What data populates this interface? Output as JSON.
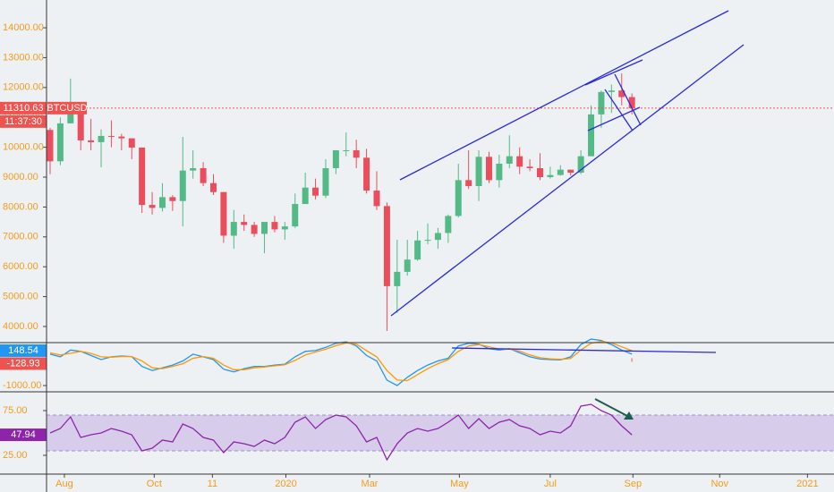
{
  "chart_data": [
    {
      "type": "candlestick",
      "symbol": "BTCUSD",
      "countdown": "11:37:30",
      "up_color": "#53b987",
      "down_color": "#eb4d5c",
      "label_color": "#ef5350",
      "open": [
        10580,
        9530,
        10800,
        11380,
        10230,
        10170,
        10380,
        10360,
        10300,
        9990,
        8070,
        7970,
        8330,
        8200,
        9220,
        9300,
        8800,
        8500,
        7040,
        7500,
        7400,
        7100,
        7500,
        7250,
        7350,
        8100,
        8650,
        8380,
        9300,
        9900,
        9900,
        9650,
        8550,
        8030,
        5350,
        5830,
        6240,
        6880,
        6900,
        7130,
        7700,
        8900,
        8700,
        9680,
        8900,
        9450,
        9700,
        9350,
        9300,
        9000,
        9070,
        9250,
        9150,
        9700,
        11100,
        11850,
        11900,
        11680
      ],
      "high": [
        10650,
        11000,
        12300,
        11450,
        10950,
        10600,
        10900,
        10450,
        10300,
        9990,
        8500,
        8800,
        8400,
        10350,
        9900,
        9500,
        9100,
        8500,
        7900,
        7750,
        7500,
        7500,
        7700,
        7500,
        8450,
        9150,
        8950,
        9600,
        9900,
        10500,
        10250,
        9950,
        9200,
        8150,
        6900,
        6900,
        7200,
        7450,
        7300,
        7750,
        9450,
        9900,
        9900,
        9850,
        9750,
        10400,
        10000,
        9600,
        9800,
        9350,
        9400,
        9250,
        9900,
        11400,
        11900,
        12100,
        12470,
        11800
      ],
      "low": [
        9100,
        9400,
        10800,
        9900,
        9900,
        9330,
        10000,
        9900,
        9600,
        7800,
        7750,
        7850,
        7870,
        7350,
        8950,
        8700,
        8400,
        6800,
        6600,
        7200,
        7000,
        6450,
        7150,
        6900,
        7300,
        8100,
        8250,
        8300,
        9100,
        9700,
        9300,
        8450,
        7900,
        3850,
        4450,
        5700,
        6200,
        6750,
        6600,
        6800,
        7650,
        8600,
        8200,
        8800,
        8650,
        9300,
        9100,
        9200,
        8900,
        8950,
        9050,
        9050,
        9100,
        9700,
        10650,
        11150,
        11400,
        11100
      ],
      "close": [
        9530,
        10800,
        11380,
        10230,
        10170,
        10380,
        10360,
        10300,
        9990,
        8070,
        7970,
        8330,
        8200,
        9220,
        9300,
        8800,
        8500,
        7040,
        7500,
        7400,
        7100,
        7500,
        7250,
        7350,
        8100,
        8650,
        8380,
        9300,
        9900,
        9900,
        9650,
        8550,
        8030,
        5350,
        5830,
        6240,
        6880,
        6900,
        7130,
        7700,
        8900,
        8700,
        9680,
        8900,
        9450,
        9700,
        9350,
        9300,
        9000,
        9070,
        9250,
        9150,
        9700,
        11100,
        11850,
        11900,
        11680,
        11310.63
      ],
      "ylim": [
        3460,
        14930
      ],
      "yticks": [
        {
          "value": 4000,
          "label": "4000.00"
        },
        {
          "value": 5000,
          "label": "5000.00"
        },
        {
          "value": 6000,
          "label": "6000.00"
        },
        {
          "value": 7000,
          "label": "7000.00"
        },
        {
          "value": 8000,
          "label": "8000.00"
        },
        {
          "value": 9000,
          "label": "9000.00"
        },
        {
          "value": 10000,
          "label": "10000.00"
        },
        {
          "value": 11000,
          "label": "11000.00"
        },
        {
          "value": 12000,
          "label": "12000.00"
        },
        {
          "value": 13000,
          "label": "13000.00"
        },
        {
          "value": 14000,
          "label": "14000.00"
        }
      ],
      "xlim": [
        -0.35,
        76.8
      ],
      "xticks": [
        {
          "value": 1.4,
          "label": "Aug"
        },
        {
          "value": 10.2,
          "label": "Oct"
        },
        {
          "value": 15.9,
          "label": "11"
        },
        {
          "value": 23.1,
          "label": "2020"
        },
        {
          "value": 31.3,
          "label": "Mar"
        },
        {
          "value": 40.1,
          "label": "May"
        },
        {
          "value": 49.0,
          "label": "Jul"
        },
        {
          "value": 57.1,
          "label": "Sep"
        },
        {
          "value": 65.6,
          "label": "Nov"
        },
        {
          "value": 74.2,
          "label": "2021"
        }
      ]
    },
    {
      "type": "line",
      "series": [
        {
          "color": "#2196f3",
          "values": [
            150,
            50,
            300,
            250,
            100,
            -50,
            50,
            80,
            60,
            -300,
            -450,
            -350,
            -250,
            -100,
            150,
            50,
            -50,
            -400,
            -500,
            -380,
            -300,
            -300,
            -250,
            -220,
            50,
            250,
            280,
            400,
            550,
            600,
            450,
            100,
            -100,
            -800,
            -1000,
            -700,
            -450,
            -250,
            -100,
            0,
            450,
            550,
            520,
            350,
            300,
            350,
            200,
            50,
            -30,
            -50,
            -60,
            50,
            500,
            700,
            650,
            500,
            300,
            148.54
          ]
        },
        {
          "color": "#ff9800",
          "values": [
            200,
            120,
            180,
            250,
            180,
            50,
            40,
            60,
            60,
            -100,
            -350,
            -380,
            -300,
            -200,
            0,
            60,
            0,
            -250,
            -420,
            -420,
            -350,
            -320,
            -280,
            -240,
            -80,
            120,
            230,
            330,
            460,
            560,
            520,
            280,
            50,
            -450,
            -800,
            -820,
            -600,
            -380,
            -200,
            -50,
            250,
            450,
            500,
            420,
            340,
            330,
            260,
            120,
            20,
            -20,
            -40,
            -10,
            300,
            550,
            620,
            560,
            420,
            277.47
          ]
        }
      ],
      "histogram_label": -128.93,
      "histogram_color": "#ef5350",
      "ylim": [
        -1230,
        540
      ],
      "yticks": [
        {
          "value": -1000,
          "label": "-1000.00"
        }
      ]
    },
    {
      "type": "line",
      "series": [
        {
          "color": "#8e24aa",
          "values": [
            50,
            55,
            68,
            45,
            48,
            50,
            55,
            52,
            48,
            30,
            33,
            42,
            40,
            60,
            55,
            45,
            42,
            28,
            40,
            38,
            35,
            42,
            38,
            45,
            62,
            68,
            55,
            65,
            70,
            68,
            58,
            40,
            45,
            20,
            38,
            50,
            55,
            52,
            55,
            62,
            70,
            55,
            66,
            55,
            62,
            65,
            58,
            55,
            48,
            52,
            50,
            58,
            80,
            82,
            75,
            70,
            58,
            47.94
          ]
        }
      ],
      "band": [
        30,
        70
      ],
      "band_color": "#d1c4e9",
      "ylim": [
        4,
        94
      ],
      "yticks": [
        {
          "value": 25,
          "label": "25.00"
        },
        {
          "value": 75,
          "label": "75.00"
        }
      ]
    }
  ]
}
